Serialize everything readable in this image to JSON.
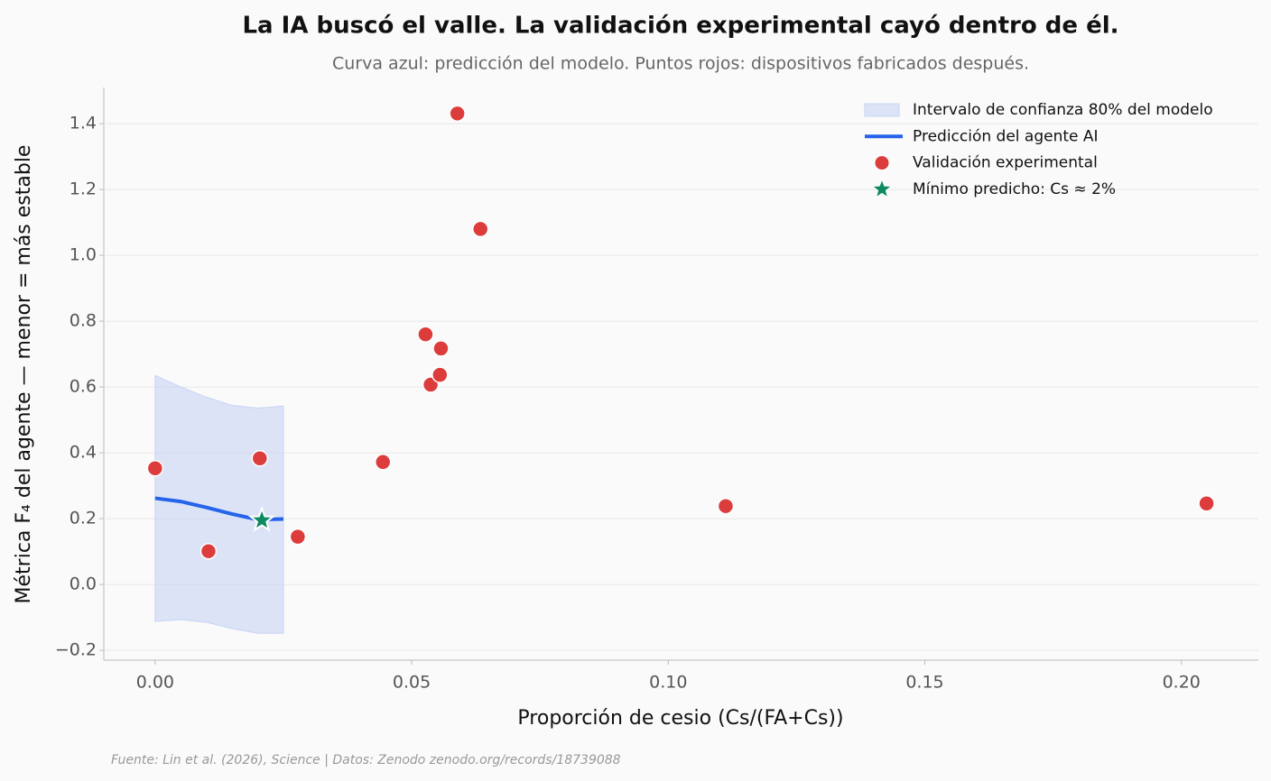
{
  "chart_data": {
    "type": "scatter",
    "title": "La IA buscó el valle. La validación experimental cayó dentro de él.",
    "subtitle": "Curva azul: predicción del modelo. Puntos rojos: dispositivos fabricados después.",
    "x_label": "Proporción de cesio (Cs/(FA+Cs))",
    "y_label": "Métrica F₄ del agente — menor = más estable",
    "source": "Fuente: Lin et al. (2026), Science | Datos: Zenodo zenodo.org/records/18739088",
    "xlim": [
      -0.01,
      0.215
    ],
    "ylim": [
      -0.23,
      1.51
    ],
    "xticks": [
      {
        "value": 0,
        "label": "0.00"
      },
      0.05,
      {
        "value": 0.1,
        "label": "0.10"
      },
      0.15,
      {
        "value": 0.2,
        "label": "0.20"
      }
    ],
    "yticks": [
      {
        "value": -0.2,
        "label": "−0.2"
      },
      {
        "value": 0,
        "label": "0.0"
      },
      0.2,
      0.4,
      0.6,
      0.8,
      {
        "value": 1,
        "label": "1.0"
      },
      1.2,
      1.4
    ],
    "grid": true,
    "legend": "upper right",
    "series": [
      {
        "kind": "band",
        "name": "Intervalo de confianza 80% del modelo",
        "color": "#c8d4f5",
        "x": [
          0,
          0.005,
          0.01,
          0.015,
          0.02,
          0.025
        ],
        "upper": [
          0.635,
          0.6,
          0.569,
          0.544,
          0.536,
          0.542
        ],
        "lower": [
          -0.112,
          -0.107,
          -0.115,
          -0.134,
          -0.148,
          -0.148
        ]
      },
      {
        "kind": "line",
        "name": "Predicción del agente AI",
        "color": "#2563eb",
        "x": [
          0,
          0.005,
          0.01,
          0.015,
          0.02,
          0.025
        ],
        "values": [
          0.262,
          0.252,
          0.234,
          0.214,
          0.197,
          0.199
        ]
      },
      {
        "kind": "points",
        "name": "Validación experimental",
        "color": "#dc3c3c",
        "x": [
          0,
          0.0104,
          0.0204,
          0.0278,
          0.0444,
          0.0527,
          0.0537,
          0.0555,
          0.0557,
          0.0589,
          0.0634,
          0.1112,
          0.2049
        ],
        "values": [
          0.353,
          0.101,
          0.383,
          0.145,
          0.372,
          0.76,
          0.607,
          0.637,
          0.717,
          1.431,
          1.08,
          0.238,
          0.246
        ]
      },
      {
        "kind": "star",
        "name": "Mínimo predicho: Cs ≈ 2%",
        "color": "#0e8a5f",
        "x": [
          0.0208
        ],
        "values": [
          0.195
        ]
      }
    ]
  }
}
